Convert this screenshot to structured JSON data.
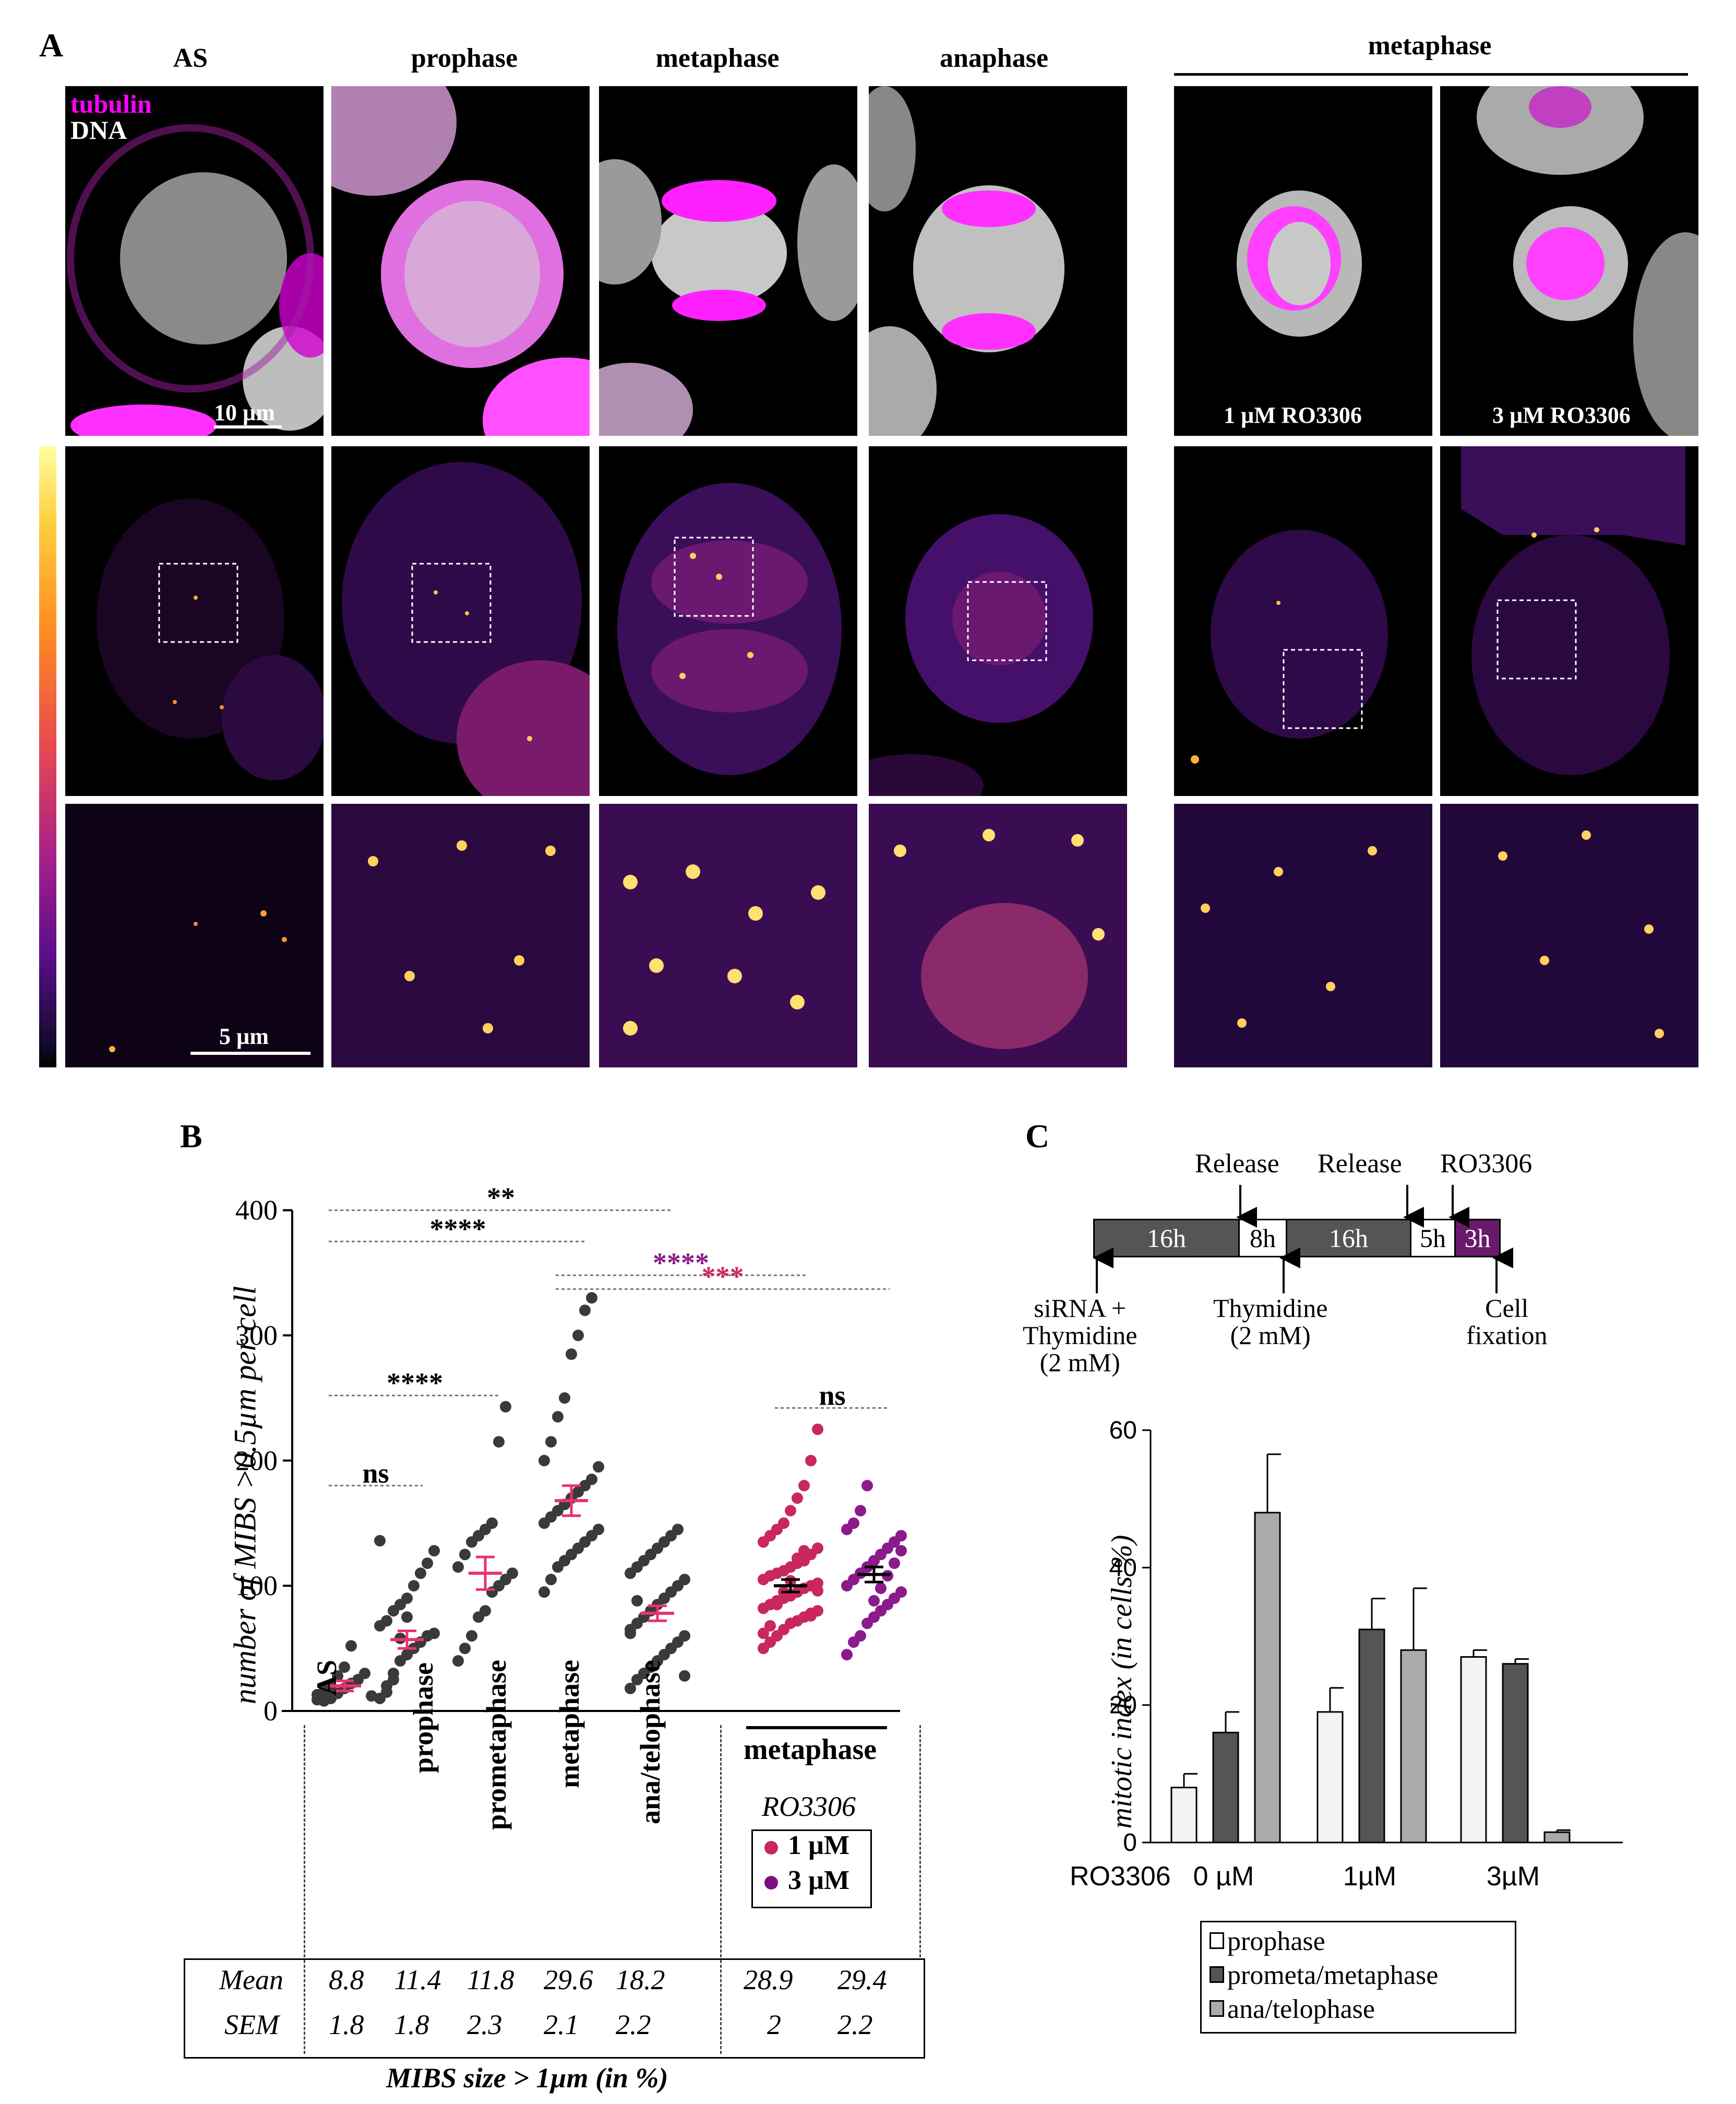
{
  "panel_a": {
    "letter": "A",
    "columns": [
      "AS",
      "prophase",
      "metaphase",
      "anaphase"
    ],
    "group_label": "metaphase",
    "legend_tubulin": "tubulin",
    "legend_dna": "DNA",
    "scale_top": "10 µm",
    "scale_bottom": "5 µm",
    "treat_1": "1 µM RO3306",
    "treat_3": "3 µM RO3306",
    "colors": {
      "tubulin": "#ff00ff",
      "dna": "#cfcfcf"
    }
  },
  "panel_b": {
    "letter": "B",
    "ylabel": "number of MIBS >0.5µm per cell",
    "yticks": [
      "400",
      "300",
      "200",
      "100",
      "0"
    ],
    "categories": [
      "AS",
      "prophase",
      "prometaphase",
      "metaphase",
      "ana/telophase"
    ],
    "group_label": "metaphase",
    "ro_label": "RO3306",
    "legend_1": "1 µM",
    "legend_3": "3 µM",
    "sig": {
      "s1": "**",
      "s2": "****",
      "s3": "****",
      "s4": "***",
      "s5": "****",
      "s6": "ns",
      "s7": "ns"
    },
    "table": {
      "row1_label": "Mean",
      "row2_label": "SEM",
      "means": [
        "8.8",
        "11.4",
        "11.8",
        "29.6",
        "18.2",
        "28.9",
        "29.4"
      ],
      "sems": [
        "1.8",
        "1.8",
        "2.3",
        "2.1",
        "2.2",
        "2",
        "2.2"
      ],
      "caption": "MIBS size > 1µm (in %)"
    },
    "colors": {
      "dots": "#3a3a3a",
      "mean_bar": "#e8336d",
      "ro1": "#c8285e",
      "ro3": "#8b1a8b"
    }
  },
  "panel_c": {
    "letter": "C",
    "timeline": {
      "segments": [
        "16h",
        "8h",
        "16h",
        "5h",
        "3h"
      ],
      "top_labels": [
        "Release",
        "Release",
        "RO3306"
      ],
      "bottom_labels": [
        "siRNA +\nThymidine\n(2 mM)",
        "Thymidine\n(2 mM)",
        "Cell\nfixation"
      ]
    },
    "ylabel": "mitotic index (in cells %)",
    "yticks": [
      "60",
      "40",
      "20",
      "0"
    ],
    "xlabel_prefix": "RO3306",
    "legend": [
      "prophase",
      "prometa/metaphase",
      "ana/telophase"
    ]
  },
  "chart_data": [
    {
      "type": "scatter",
      "ylabel": "number of MIBS >0.5µm per cell",
      "ylim": [
        0,
        400
      ],
      "categories": [
        "AS",
        "prophase",
        "prometaphase",
        "metaphase",
        "ana/telophase",
        "metaphase RO3306 1 µM",
        "metaphase RO3306 3 µM"
      ],
      "means": [
        20,
        57,
        110,
        168,
        78,
        100,
        109
      ],
      "sem": [
        4,
        7,
        13,
        12,
        6,
        5,
        6
      ],
      "points": [
        [
          13,
          8,
          10,
          14,
          18,
          22,
          25,
          30,
          12,
          9,
          16,
          20,
          28,
          35,
          52
        ],
        [
          10,
          20,
          30,
          40,
          45,
          50,
          55,
          60,
          62,
          68,
          72,
          80,
          85,
          90,
          100,
          110,
          118,
          128,
          136,
          15,
          25,
          58,
          75
        ],
        [
          40,
          50,
          60,
          75,
          80,
          95,
          100,
          105,
          110,
          115,
          125,
          135,
          140,
          145,
          150,
          215,
          243
        ],
        [
          95,
          105,
          115,
          120,
          125,
          130,
          135,
          140,
          145,
          150,
          155,
          160,
          165,
          170,
          175,
          180,
          185,
          195,
          200,
          215,
          235,
          250,
          285,
          300,
          320,
          330
        ],
        [
          18,
          25,
          30,
          35,
          40,
          45,
          50,
          55,
          60,
          65,
          70,
          75,
          80,
          85,
          90,
          95,
          100,
          105,
          110,
          115,
          120,
          125,
          130,
          135,
          140,
          145,
          28,
          62,
          88
        ],
        [
          50,
          55,
          60,
          65,
          70,
          72,
          75,
          78,
          80,
          82,
          85,
          88,
          90,
          92,
          95,
          98,
          100,
          102,
          105,
          108,
          110,
          112,
          115,
          118,
          120,
          125,
          130,
          135,
          140,
          145,
          150,
          160,
          170,
          180,
          200,
          225,
          62,
          68,
          85,
          95,
          104,
          122,
          128,
          76,
          96
        ],
        [
          45,
          55,
          60,
          70,
          75,
          80,
          85,
          90,
          95,
          100,
          105,
          110,
          115,
          120,
          125,
          130,
          135,
          140,
          145,
          150,
          160,
          180,
          88,
          98,
          108,
          118,
          128
        ]
      ]
    },
    {
      "type": "bar",
      "ylabel": "mitotic index (in cells %)",
      "ylim": [
        0,
        60
      ],
      "categories": [
        "0 µM",
        "1µM",
        "3µM"
      ],
      "series": [
        {
          "name": "prophase",
          "values": [
            8,
            19,
            27
          ],
          "err": [
            2,
            3.5,
            1
          ]
        },
        {
          "name": "prometa/metaphase",
          "values": [
            16,
            31,
            26
          ],
          "err": [
            3,
            4.5,
            0.7
          ]
        },
        {
          "name": "ana/telophase",
          "values": [
            48,
            28,
            1.5
          ],
          "err": [
            8.5,
            9,
            0.3
          ]
        }
      ]
    }
  ]
}
